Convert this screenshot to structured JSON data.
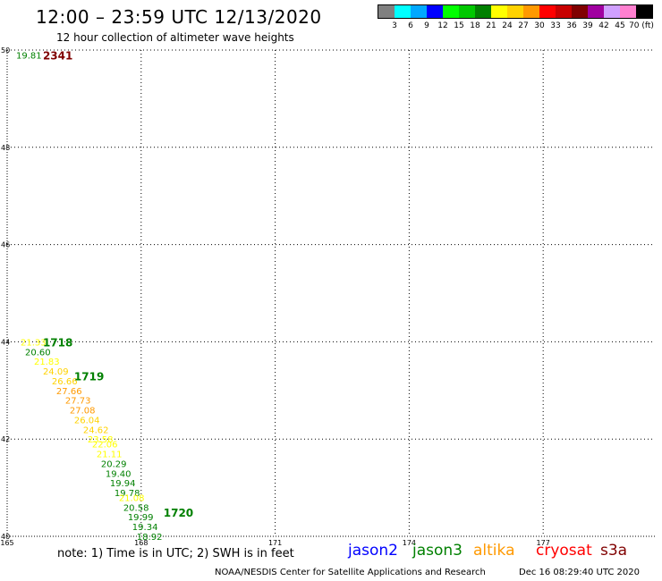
{
  "header": {
    "title": "12:00 – 23:59 UTC 12/13/2020",
    "subtitle": "12 hour collection of altimeter wave heights"
  },
  "color_scale": {
    "colors": [
      "#808080",
      "#00ffff",
      "#00a8ff",
      "#0000ff",
      "#00ff00",
      "#00c800",
      "#008000",
      "#ffff00",
      "#ffd200",
      "#ff9900",
      "#ff0000",
      "#c80000",
      "#800000",
      "#a000a0",
      "#d0a0ff",
      "#ff80d0",
      "#000000"
    ],
    "labels": [
      "3",
      "6",
      "9",
      "12",
      "15",
      "18",
      "21",
      "24",
      "27",
      "30",
      "33",
      "36",
      "39",
      "42",
      "45",
      "70 (ft)"
    ]
  },
  "chart_data": {
    "type": "scatter",
    "xlim": [
      165,
      179.5
    ],
    "ylim": [
      40,
      50
    ],
    "x_ticks": [
      165,
      168,
      171,
      174,
      177
    ],
    "y_ticks": [
      40,
      42,
      44,
      46,
      48,
      50
    ],
    "grid": true,
    "points": [
      {
        "x": 165.2,
        "y": 49.9,
        "value": 19.81,
        "color": "#008000"
      },
      {
        "x": 165.3,
        "y": 44.0,
        "value": 21.33,
        "color": "#ffff00"
      },
      {
        "x": 165.4,
        "y": 43.8,
        "value": 20.6,
        "color": "#008000"
      },
      {
        "x": 165.6,
        "y": 43.6,
        "value": 21.83,
        "color": "#ffff00"
      },
      {
        "x": 165.8,
        "y": 43.4,
        "value": 24.09,
        "color": "#ffd200"
      },
      {
        "x": 166.0,
        "y": 43.2,
        "value": 26.66,
        "color": "#ffd200"
      },
      {
        "x": 166.1,
        "y": 43.0,
        "value": 27.66,
        "color": "#ff9900"
      },
      {
        "x": 166.3,
        "y": 42.8,
        "value": 27.73,
        "color": "#ff9900"
      },
      {
        "x": 166.4,
        "y": 42.6,
        "value": 27.08,
        "color": "#ff9900"
      },
      {
        "x": 166.5,
        "y": 42.4,
        "value": 26.04,
        "color": "#ffd200"
      },
      {
        "x": 166.7,
        "y": 42.2,
        "value": 24.62,
        "color": "#ffd200"
      },
      {
        "x": 166.8,
        "y": 42.0,
        "value": 23.58,
        "color": "#ffff00"
      },
      {
        "x": 166.9,
        "y": 41.9,
        "value": 22.06,
        "color": "#ffff00"
      },
      {
        "x": 167.0,
        "y": 41.7,
        "value": 21.11,
        "color": "#ffff00"
      },
      {
        "x": 167.1,
        "y": 41.5,
        "value": 20.29,
        "color": "#008000"
      },
      {
        "x": 167.2,
        "y": 41.3,
        "value": 19.4,
        "color": "#008000"
      },
      {
        "x": 167.3,
        "y": 41.1,
        "value": 19.94,
        "color": "#008000"
      },
      {
        "x": 167.4,
        "y": 40.9,
        "value": 19.78,
        "color": "#008000"
      },
      {
        "x": 167.5,
        "y": 40.8,
        "value": 21.08,
        "color": "#ffff00"
      },
      {
        "x": 167.6,
        "y": 40.6,
        "value": 20.58,
        "color": "#008000"
      },
      {
        "x": 167.7,
        "y": 40.4,
        "value": 19.99,
        "color": "#008000"
      },
      {
        "x": 167.8,
        "y": 40.2,
        "value": 19.34,
        "color": "#008000"
      },
      {
        "x": 167.9,
        "y": 40.0,
        "value": 18.92,
        "color": "#008000"
      }
    ],
    "time_labels": [
      {
        "x": 165.8,
        "y": 49.9,
        "text": "2341",
        "color": "#800000"
      },
      {
        "x": 165.8,
        "y": 44.0,
        "text": "1718",
        "color": "#008000"
      },
      {
        "x": 166.5,
        "y": 43.3,
        "text": "1719",
        "color": "#008000"
      },
      {
        "x": 168.5,
        "y": 40.5,
        "text": "1720",
        "color": "#008000"
      }
    ]
  },
  "note": "note: 1) Time is in UTC; 2) SWH is in feet",
  "missions": [
    {
      "name": "jason2",
      "color": "#0000ff"
    },
    {
      "name": "jason3",
      "color": "#008000"
    },
    {
      "name": "altika",
      "color": "#ff9900"
    },
    {
      "name": "cryosat",
      "color": "#ff0000"
    },
    {
      "name": "s3a",
      "color": "#800000"
    }
  ],
  "footer": {
    "credit": "NOAA/NESDIS Center for Satellite Applications and Research",
    "timestamp": "Dec 16 08:29:40 UTC 2020"
  }
}
